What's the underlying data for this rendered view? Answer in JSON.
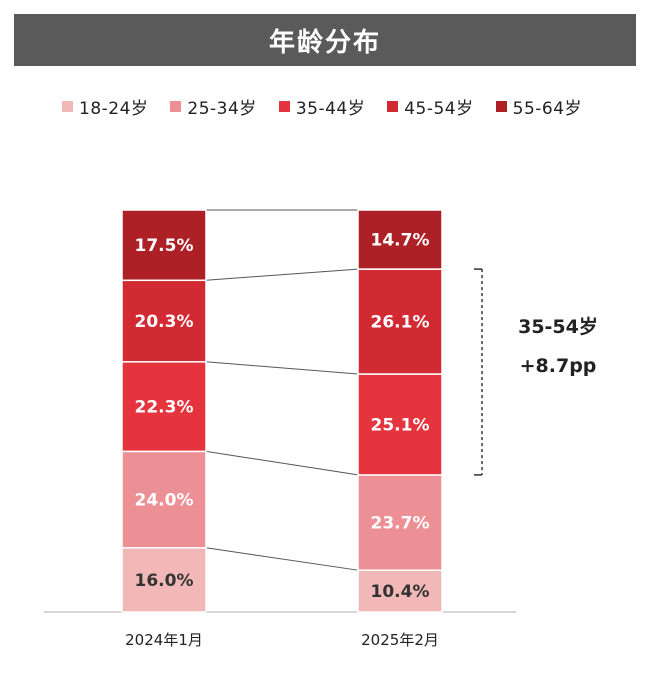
{
  "title": "年龄分布",
  "chart_data": {
    "type": "bar",
    "stacked": true,
    "normalized": true,
    "categories": [
      "2024年1月",
      "2025年2月"
    ],
    "series": [
      {
        "name": "18-24岁",
        "values": [
          16.0,
          10.4
        ],
        "color": "#f2b8b8",
        "label_color": "#333333"
      },
      {
        "name": "25-34岁",
        "values": [
          24.0,
          23.7
        ],
        "color": "#ec9096",
        "label_color": "#ffffff"
      },
      {
        "name": "35-44岁",
        "values": [
          22.3,
          25.1
        ],
        "color": "#e5343d",
        "label_color": "#ffffff"
      },
      {
        "name": "45-54岁",
        "values": [
          20.3,
          26.1
        ],
        "color": "#d12a33",
        "label_color": "#ffffff"
      },
      {
        "name": "55-64岁",
        "values": [
          17.5,
          14.7
        ],
        "color": "#ac2026",
        "label_color": "#ffffff"
      }
    ],
    "data_labels": [
      [
        "16.0%",
        "24.0%",
        "22.3%",
        "20.3%",
        "17.5%"
      ],
      [
        "10.4%",
        "23.7%",
        "25.1%",
        "26.1%",
        "14.7%"
      ]
    ],
    "legend_position": "top",
    "grid": false,
    "annotation": {
      "line1": "35-54岁",
      "line2": "+8.7pp"
    }
  }
}
